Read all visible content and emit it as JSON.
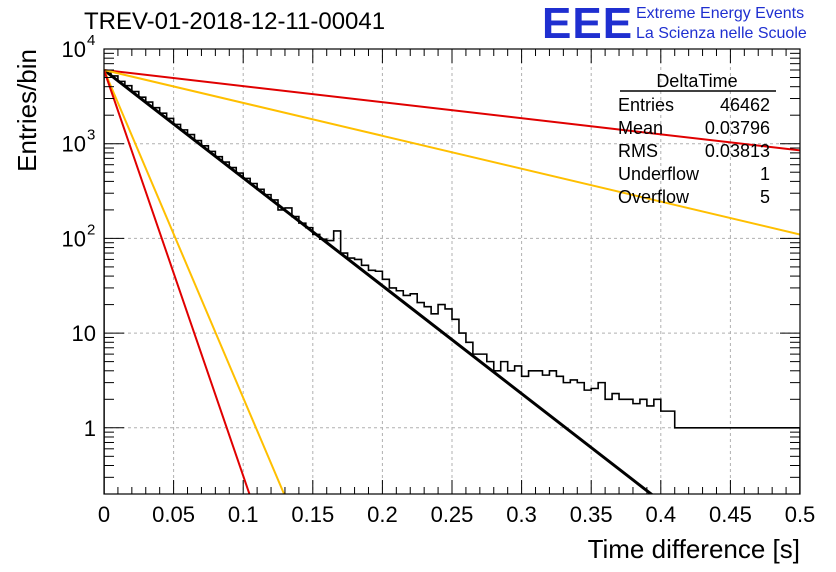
{
  "header": {
    "run_title": "TREV-01-2018-12-11-00041",
    "logo": {
      "mark": "EEE",
      "line1": "Extreme Energy Events",
      "line2": "La Scienza nelle Scuole",
      "color": "#1f2fd0"
    }
  },
  "stats_box": {
    "title": "DeltaTime",
    "rows": [
      {
        "label": "Entries",
        "value": "46462"
      },
      {
        "label": "Mean",
        "value": "0.03796"
      },
      {
        "label": "RMS",
        "value": "0.03813"
      },
      {
        "label": "Underflow",
        "value": "1"
      },
      {
        "label": "Overflow",
        "value": "5"
      }
    ]
  },
  "chart_data": {
    "type": "line",
    "xlabel": "Time difference [s]",
    "ylabel": "Entries/bin",
    "xlim": [
      0,
      0.5
    ],
    "ylim": [
      0.2,
      10000
    ],
    "y_scale": "log",
    "grid": true,
    "x_ticks": [
      "0",
      "0.05",
      "0.1",
      "0.15",
      "0.2",
      "0.25",
      "0.3",
      "0.35",
      "0.4",
      "0.45",
      "0.5"
    ],
    "y_ticks": [
      {
        "value": 1,
        "label": "1"
      },
      {
        "value": 10,
        "label": "10"
      },
      {
        "value": 100,
        "label": "10",
        "exp": "2"
      },
      {
        "value": 1000,
        "label": "10",
        "exp": "3"
      },
      {
        "value": 10000,
        "label": "10",
        "exp": "4"
      }
    ],
    "histogram": {
      "name": "DeltaTime",
      "color": "#000000",
      "bin_width": 0.005,
      "counts": [
        5900,
        5200,
        4550,
        4100,
        3550,
        3100,
        2750,
        2400,
        2100,
        1850,
        1600,
        1400,
        1250,
        1080,
        950,
        830,
        730,
        640,
        560,
        490,
        430,
        380,
        330,
        290,
        255,
        200,
        210,
        170,
        145,
        130,
        110,
        98,
        95,
        120,
        70,
        62,
        60,
        52,
        46,
        45,
        37,
        30,
        28,
        25,
        26,
        21,
        19,
        16,
        20,
        18,
        14,
        10,
        8,
        6,
        6,
        5,
        4,
        5,
        4,
        4.5,
        3.5,
        4,
        4,
        3.6,
        4,
        3.5,
        3,
        3.2,
        3,
        2.5,
        2.6,
        3,
        2,
        2.3,
        2,
        2,
        1.8,
        2,
        1.7,
        2,
        1.5,
        1.5,
        1,
        1,
        1,
        1,
        1,
        1,
        1,
        1,
        1,
        1,
        1,
        1,
        1,
        1,
        1,
        1,
        1,
        1
      ]
    },
    "series": [
      {
        "name": "",
        "color": "#000000",
        "x": [
          0,
          0.395
        ],
        "y": [
          6000,
          0.19
        ]
      },
      {
        "name": "",
        "color": "#e00000",
        "x": [
          0,
          0.5
        ],
        "y": [
          6000,
          850
        ]
      },
      {
        "name": "",
        "color": "#ffbf00",
        "x": [
          0,
          0.5
        ],
        "y": [
          6000,
          110
        ]
      },
      {
        "name": "",
        "color": "#ffbf00",
        "x": [
          0,
          0.13
        ],
        "y": [
          6000,
          0.19
        ]
      },
      {
        "name": "",
        "color": "#e00000",
        "x": [
          0,
          0.105
        ],
        "y": [
          6000,
          0.19
        ]
      }
    ]
  }
}
